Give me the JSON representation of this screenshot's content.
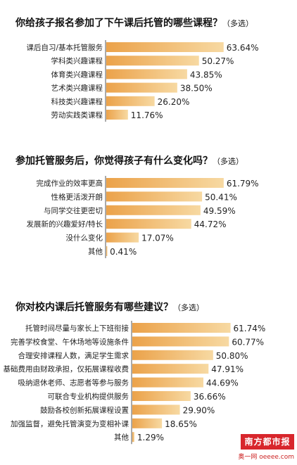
{
  "chart_data": [
    {
      "type": "bar",
      "title": "你给孩子报名参加了下午课后托管的哪些课程？",
      "note": "（多选）",
      "categories": [
        "课后自习/基本托管服务",
        "学科类兴趣课程",
        "体育类兴趣课程",
        "艺术类兴趣课程",
        "科技类兴趣课程",
        "劳动实践类课程"
      ],
      "values": [
        63.64,
        50.27,
        43.85,
        38.5,
        26.2,
        11.76
      ],
      "value_labels": [
        "63.64%",
        "50.27%",
        "43.85%",
        "38.50%",
        "26.20%",
        "11.76%"
      ],
      "unit": "%",
      "xlim": [
        0,
        70
      ]
    },
    {
      "type": "bar",
      "title": "参加托管服务后，你觉得孩子有什么变化吗？",
      "note": "（多选）",
      "categories": [
        "完成作业的效率更高",
        "性格更活泼开朗",
        "与同学交往更密切",
        "发展新的兴趣爱好/特长",
        "没什么变化",
        "其他"
      ],
      "values": [
        61.79,
        50.41,
        49.59,
        44.72,
        17.07,
        0.41
      ],
      "value_labels": [
        "61.79%",
        "50.41%",
        "49.59%",
        "44.72%",
        "17.07%",
        "0.41%"
      ],
      "unit": "%",
      "xlim": [
        0,
        70
      ]
    },
    {
      "type": "bar",
      "title": "你对校内课后托管服务有哪些建议？",
      "note": "（多选）",
      "categories": [
        "托管时间尽量与家长上下班衔接",
        "完善学校食堂、午休场地等设施条件",
        "合理安排课程人数，满足学生需求",
        "基础费用由财政承担，仅拓展课程收费",
        "吸纳退休老师、志愿者等参与服务",
        "可联合专业机构提供服务",
        "鼓励各校创新拓展课程设置",
        "加强监督，避免托管演变为变相补课",
        "其他"
      ],
      "values": [
        61.74,
        60.77,
        50.8,
        47.91,
        44.69,
        36.66,
        29.9,
        18.65,
        1.29
      ],
      "value_labels": [
        "61.74%",
        "60.77%",
        "50.80%",
        "47.91%",
        "44.69%",
        "36.66%",
        "29.90%",
        "18.65%",
        "1.29%"
      ],
      "unit": "%",
      "xlim": [
        0,
        70
      ]
    }
  ],
  "colors": {
    "bar_dark": "#eba24a",
    "bar_light": "#f7d9a2",
    "axis": "#555555",
    "logo": "#d8262c"
  },
  "logo": {
    "main": "南方都市报",
    "sub": "奥一网 oeeee.com"
  }
}
